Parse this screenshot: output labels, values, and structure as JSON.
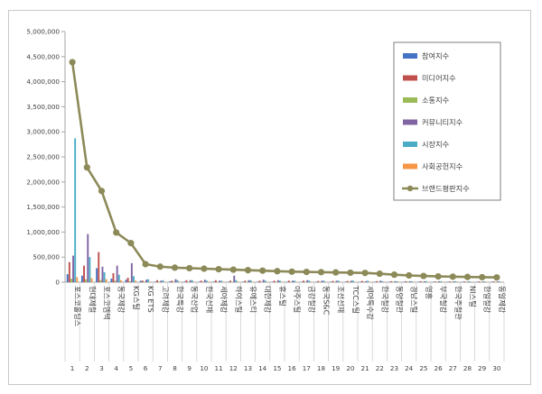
{
  "chart_data": {
    "type": "bar",
    "title": "",
    "xlabel": "",
    "ylabel": "",
    "ylim": [
      0,
      5000000
    ],
    "yticks": [
      "0",
      "500,000",
      "1,000,000",
      "1,500,000",
      "2,000,000",
      "2,500,000",
      "3,000,000",
      "3,500,000",
      "4,000,000",
      "4,500,000",
      "5,000,000"
    ],
    "grid": false,
    "legend_position": "right",
    "categories": [
      "포스코홀딩스",
      "현대제철",
      "포스코엠텍",
      "동국제강",
      "KG스틸",
      "KG ETS",
      "고려제강",
      "한국특강",
      "동국산업",
      "한국선재",
      "세아제강",
      "하이스틸",
      "유에스티",
      "대한제강",
      "휴스틸",
      "아주스틸",
      "금강철강",
      "동국S&C",
      "조선선재",
      "TCC스틸",
      "세아특수강",
      "한국철강",
      "동양철관",
      "경남스틸",
      "영흥",
      "부국철강",
      "한국주철관",
      "NI스틸",
      "한일철강",
      "동일제강"
    ],
    "x_numbers": [
      "1",
      "2",
      "3",
      "4",
      "5",
      "6",
      "7",
      "8",
      "9",
      "10",
      "11",
      "12",
      "13",
      "14",
      "15",
      "16",
      "17",
      "18",
      "19",
      "20",
      "21",
      "22",
      "23",
      "24",
      "25",
      "26",
      "27",
      "28",
      "29",
      "30"
    ],
    "series": [
      {
        "name": "참여지수",
        "kind": "bar",
        "color": "#4472c4",
        "values": [
          160000,
          130000,
          280000,
          70000,
          50000,
          30000,
          10000,
          15000,
          12000,
          10000,
          12000,
          8000,
          8000,
          8000,
          8000,
          7000,
          7000,
          6000,
          6000,
          6000,
          6000,
          6000,
          5000,
          5000,
          5000,
          4000,
          4000,
          4000,
          4000,
          4000
        ]
      },
      {
        "name": "미디어지수",
        "kind": "bar",
        "color": "#c0504d",
        "values": [
          400000,
          330000,
          600000,
          180000,
          90000,
          30000,
          40000,
          30000,
          40000,
          30000,
          40000,
          30000,
          30000,
          30000,
          30000,
          30000,
          30000,
          25000,
          25000,
          25000,
          25000,
          20000,
          20000,
          20000,
          20000,
          15000,
          15000,
          15000,
          15000,
          15000
        ]
      },
      {
        "name": "소통지수",
        "kind": "bar",
        "color": "#9bbb59",
        "values": [
          70000,
          60000,
          45000,
          30000,
          20000,
          10000,
          10000,
          10000,
          10000,
          10000,
          8000,
          8000,
          8000,
          8000,
          8000,
          8000,
          6000,
          6000,
          6000,
          6000,
          6000,
          5000,
          5000,
          5000,
          5000,
          5000,
          5000,
          5000,
          4000,
          4000
        ]
      },
      {
        "name": "커뮤니티지수",
        "kind": "bar",
        "color": "#8064a2",
        "values": [
          530000,
          960000,
          310000,
          330000,
          380000,
          50000,
          30000,
          60000,
          40000,
          50000,
          30000,
          130000,
          40000,
          50000,
          40000,
          30000,
          40000,
          30000,
          30000,
          30000,
          20000,
          30000,
          20000,
          20000,
          20000,
          20000,
          15000,
          15000,
          15000,
          15000
        ]
      },
      {
        "name": "시장지수",
        "kind": "bar",
        "color": "#4bacc6",
        "values": [
          2870000,
          500000,
          200000,
          150000,
          120000,
          60000,
          40000,
          40000,
          40000,
          30000,
          30000,
          40000,
          40000,
          30000,
          30000,
          30000,
          30000,
          30000,
          30000,
          30000,
          30000,
          20000,
          20000,
          20000,
          20000,
          20000,
          20000,
          15000,
          15000,
          15000
        ]
      },
      {
        "name": "사회공헌지수",
        "kind": "bar",
        "color": "#f79646",
        "values": [
          100000,
          80000,
          60000,
          40000,
          30000,
          10000,
          10000,
          10000,
          10000,
          10000,
          10000,
          10000,
          8000,
          8000,
          8000,
          8000,
          8000,
          5000,
          5000,
          5000,
          5000,
          5000,
          5000,
          5000,
          5000,
          5000,
          5000,
          5000,
          5000,
          5000
        ]
      },
      {
        "name": "브랜드평판지수",
        "kind": "line",
        "color": "#8c8a58",
        "values": [
          4390000,
          2290000,
          1820000,
          990000,
          780000,
          360000,
          310000,
          290000,
          280000,
          270000,
          260000,
          250000,
          240000,
          230000,
          220000,
          210000,
          205000,
          200000,
          195000,
          190000,
          185000,
          170000,
          150000,
          135000,
          125000,
          115000,
          110000,
          105000,
          100000,
          95000
        ]
      }
    ]
  }
}
